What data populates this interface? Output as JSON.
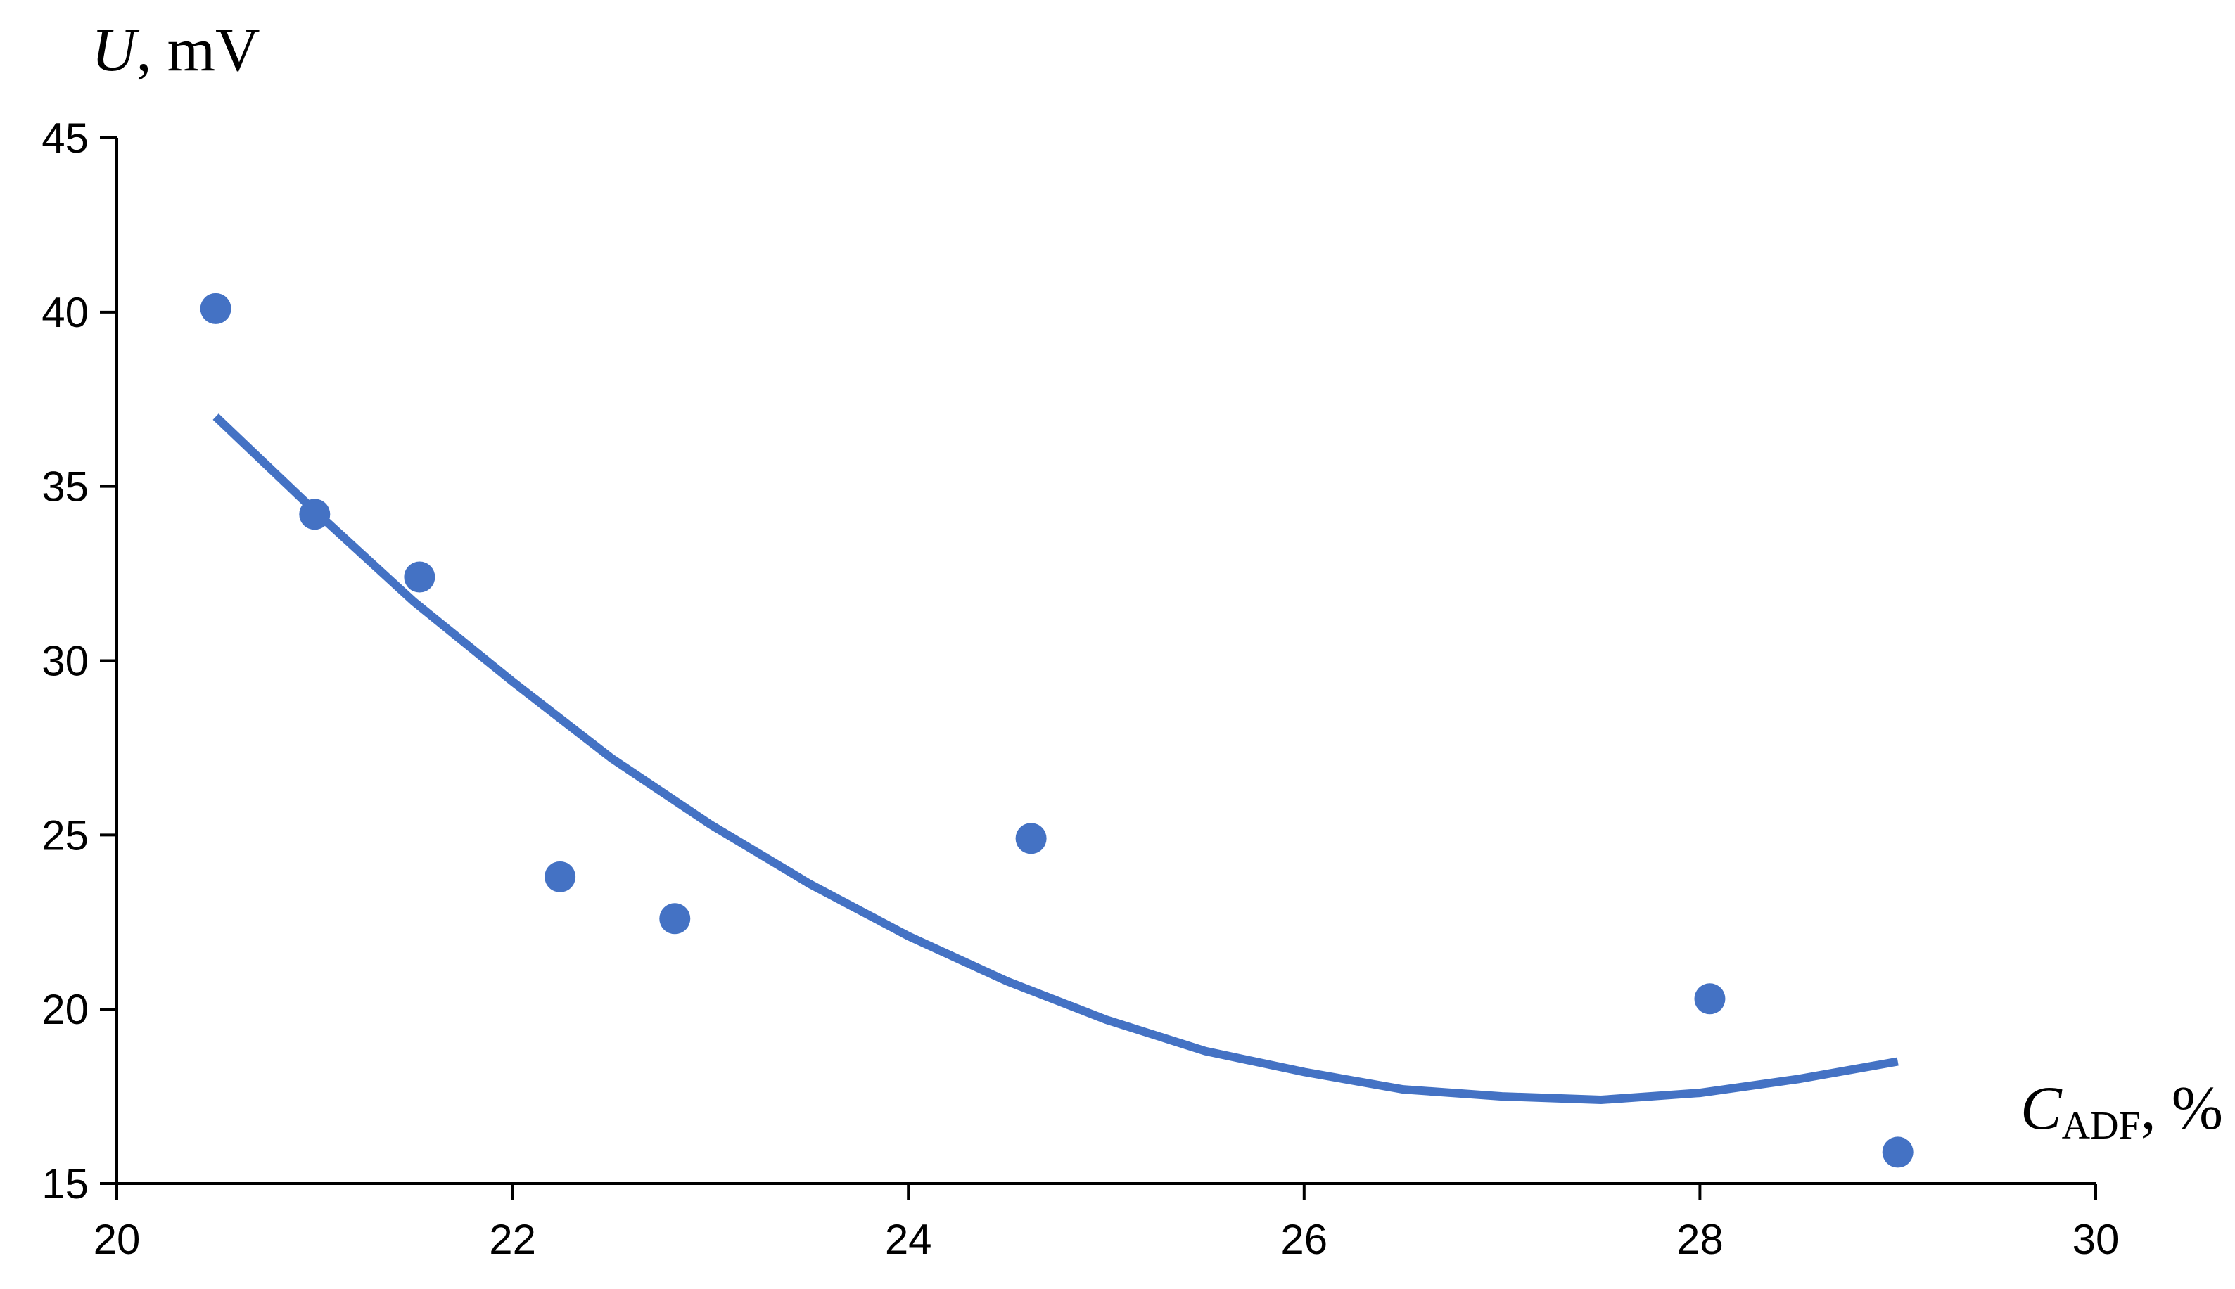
{
  "chart_data": {
    "type": "scatter",
    "ylabel_symbol": "U",
    "ylabel_unit": ", mV",
    "xlabel_symbol": "C",
    "xlabel_subscript": "ADF",
    "xlabel_unit": ", %",
    "xlim": [
      20,
      30
    ],
    "xticks": [
      20,
      22,
      24,
      26,
      28,
      30
    ],
    "ylim": [
      15,
      45
    ],
    "yticks": [
      15,
      20,
      25,
      30,
      35,
      40,
      45
    ],
    "grid": false,
    "series": [
      {
        "color": "#4472c4",
        "x": [
          20.5,
          21.0,
          21.53,
          22.24,
          22.82,
          24.62,
          28.05,
          29.0
        ],
        "values": [
          40.1,
          34.2,
          32.4,
          23.8,
          22.6,
          24.9,
          20.3,
          15.9
        ]
      }
    ],
    "trendline": {
      "color": "#4472c4",
      "x": [
        20.5,
        21,
        21.5,
        22,
        22.5,
        23,
        23.5,
        24,
        24.5,
        25,
        25.5,
        26,
        26.5,
        27,
        27.5,
        28,
        28.5,
        29
      ],
      "values": [
        37.0,
        34.3,
        31.7,
        29.4,
        27.2,
        25.3,
        23.6,
        22.1,
        20.8,
        19.7,
        18.8,
        18.2,
        17.7,
        17.5,
        17.4,
        17.6,
        18.0,
        18.5
      ]
    }
  }
}
